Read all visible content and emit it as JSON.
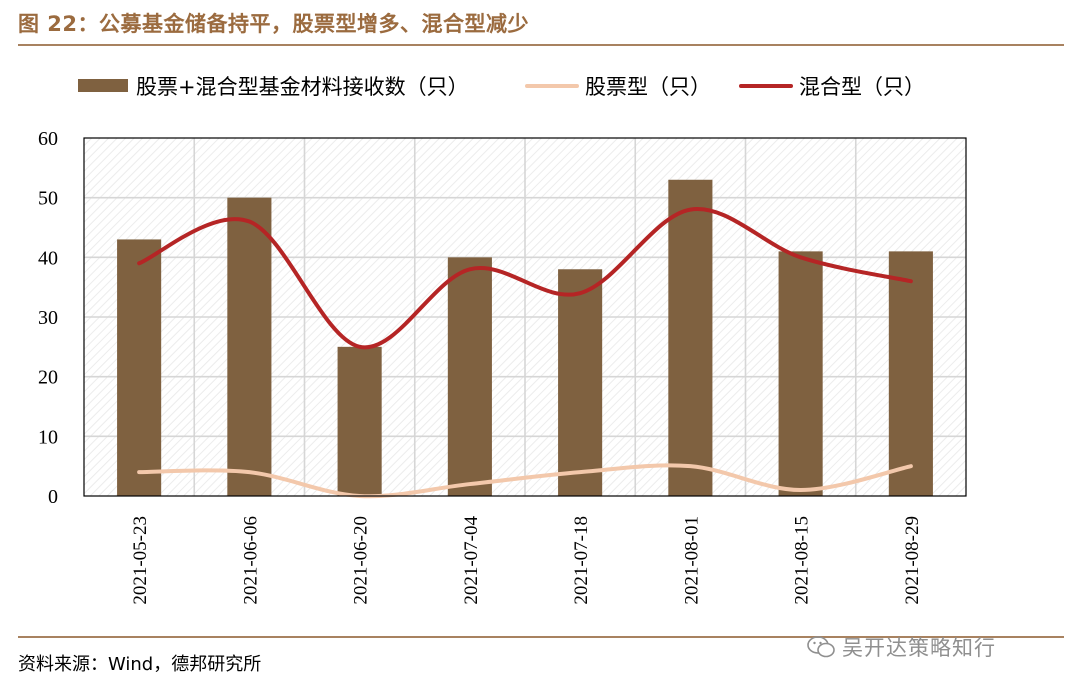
{
  "figure": {
    "title": "图 22：公募基金储备持平，股票型增多、混合型减少",
    "source": "资料来源：Wind，德邦研究所",
    "watermark": "吴开达策略知行"
  },
  "chart_data": {
    "type": "bar",
    "categories": [
      "2021-05-23",
      "2021-06-06",
      "2021-06-20",
      "2021-07-04",
      "2021-07-18",
      "2021-08-01",
      "2021-08-15",
      "2021-08-29"
    ],
    "series": [
      {
        "name": "股票+混合型基金材料接收数（只）",
        "type": "bar",
        "color": "#7f6140",
        "values": [
          43,
          50,
          25,
          40,
          38,
          53,
          41,
          41
        ]
      },
      {
        "name": "股票型（只）",
        "type": "line",
        "color": "#f3c8ab",
        "values": [
          4,
          4,
          0,
          2,
          4,
          5,
          1,
          5
        ]
      },
      {
        "name": "混合型（只）",
        "type": "line",
        "color": "#b52525",
        "values": [
          39,
          46,
          25,
          38,
          34,
          48,
          40,
          36
        ]
      }
    ],
    "ylim": [
      0,
      60
    ],
    "yticks": [
      0,
      10,
      20,
      30,
      40,
      50,
      60
    ],
    "grid": true,
    "legend": "top"
  }
}
